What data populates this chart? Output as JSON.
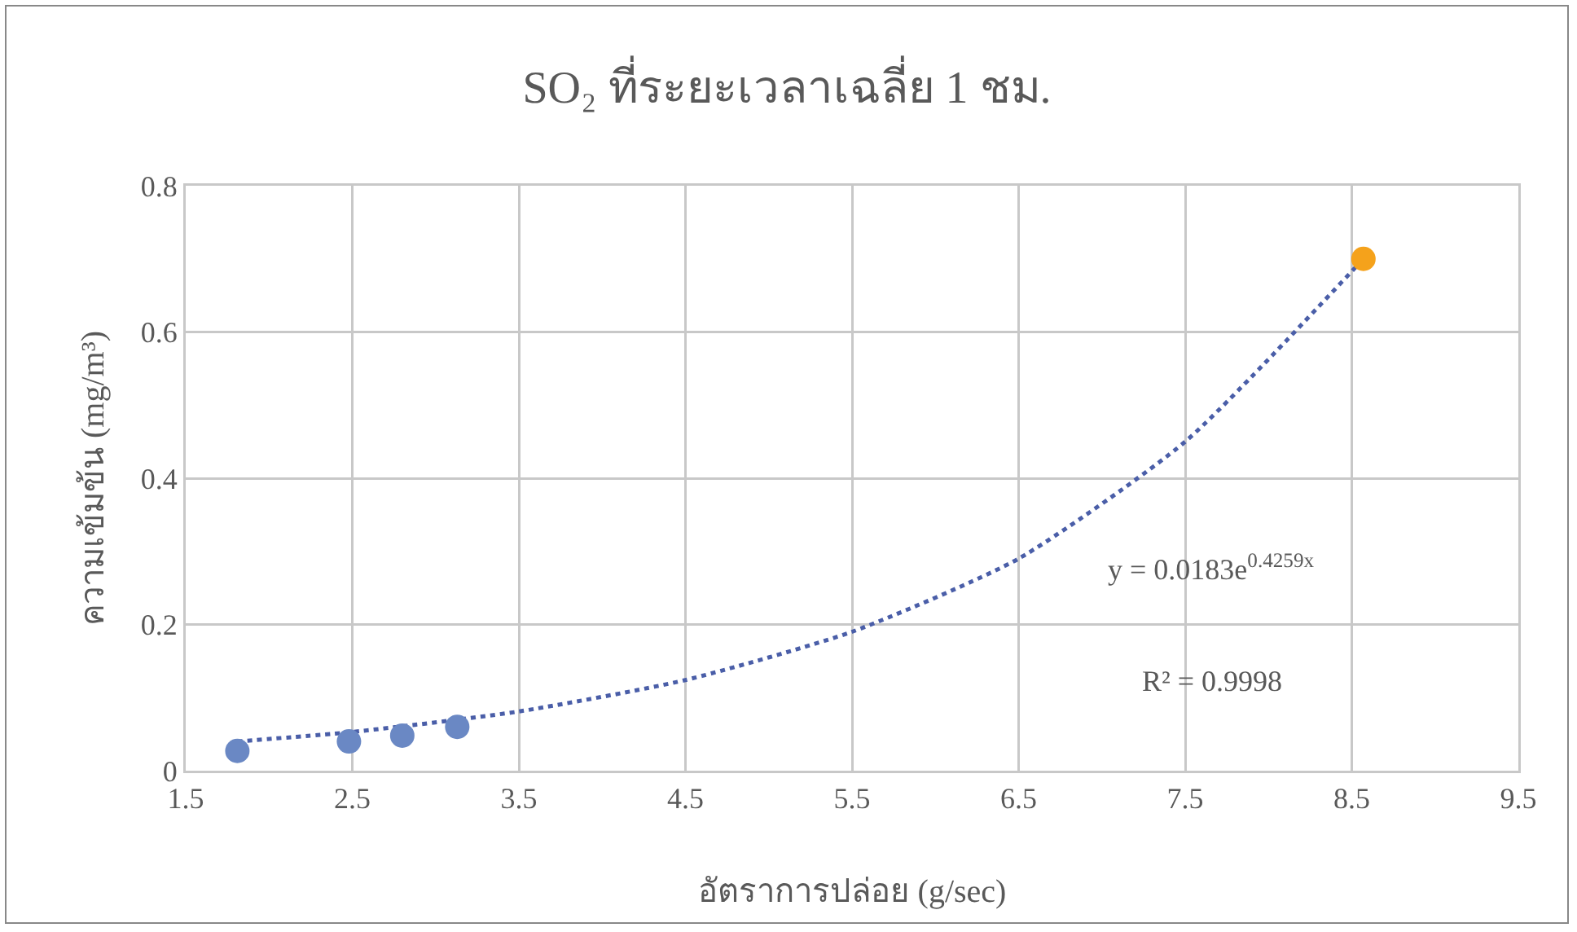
{
  "chart_data": {
    "type": "scatter",
    "title": "SO₂ ที่ระยะเวลาเฉลี่ย 1 ชม.",
    "xlabel": "อัตราการปล่อย (g/sec)",
    "ylabel": "ความเข้มข้น (mg/m³)",
    "xlim": [
      1.5,
      9.5
    ],
    "xticks": [
      1.5,
      2.5,
      3.5,
      4.5,
      5.5,
      6.5,
      7.5,
      8.5,
      9.5
    ],
    "ylim": [
      0,
      0.8
    ],
    "yticks": [
      0,
      0.2,
      0.4,
      0.6,
      0.8
    ],
    "grid": true,
    "series": [
      {
        "type": "line",
        "color": "#4a5ea8",
        "line_style": "dotted",
        "marker": "none",
        "x": [
          1.81,
          2.5,
          3.5,
          4.5,
          5.5,
          6.5,
          7.5,
          8.57
        ],
        "values": [
          0.04,
          0.053,
          0.081,
          0.124,
          0.19,
          0.29,
          0.45,
          0.7
        ]
      },
      {
        "color": "#6a88c4",
        "marker": "circle",
        "x": [
          1.81,
          2.48,
          2.8,
          3.13
        ],
        "values": [
          0.027,
          0.04,
          0.048,
          0.06
        ]
      },
      {
        "color": "#f5a21b",
        "marker": "circle",
        "x": [
          8.57
        ],
        "values": [
          0.7
        ]
      }
    ],
    "annotations": [
      "y = 0.0183e$^{0.4259x}$",
      "R² = 0.9998"
    ]
  }
}
